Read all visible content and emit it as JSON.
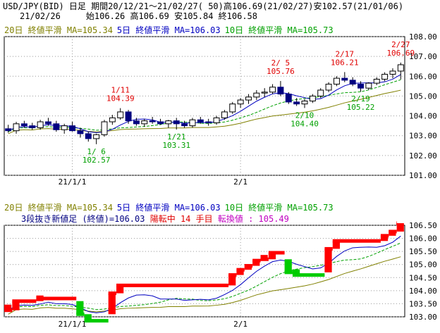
{
  "header": {
    "line1": "USD/JPY(BID) 日足 期間20/12/21～21/02/27( 50)高106.69(21/02/27)安102.57(21/01/06)",
    "date": "21/02/26",
    "ohlc": "始106.26 高106.69 安105.84 終106.58"
  },
  "ma_legend_top": {
    "ma20": "20日 終値平滑 MA=105.34",
    "ma5": "5日 終値平滑 MA=106.03",
    "ma10": "10日 終値平滑 MA=105.73"
  },
  "ma_legend_bottom": {
    "ma20": "20日 終値平滑 MA=105.34",
    "ma5": "5日 終値平滑 MA=106.03",
    "ma10": "10日 終値平滑 MA=105.73"
  },
  "kagi_info": {
    "label": "3段抜き新値足 (終値)=106.03",
    "state": "陽転中 14 手目",
    "reversal": "転換値 : 105.49"
  },
  "colors": {
    "up": "#ff0000",
    "down": "#00cc00",
    "ma5": "#0000c0",
    "ma10": "#00a000",
    "ma20": "#808000",
    "candle_down": "#000080",
    "annotation_high": "#e00000",
    "annotation_low": "#00a000"
  },
  "chart_data": [
    {
      "type": "candlestick",
      "ylim": [
        101.0,
        108.0
      ],
      "yticks": [
        "108.00",
        "107.00",
        "106.00",
        "105.00",
        "104.00",
        "103.00",
        "102.00",
        "101.00"
      ],
      "ytick_values": [
        108,
        107,
        106,
        105,
        104,
        103,
        102,
        101
      ],
      "xticks": [
        {
          "label": "21/1/1",
          "index": 8
        },
        {
          "label": "2/1",
          "index": 29
        }
      ],
      "annotations": [
        {
          "date": "1/ 6",
          "value": "102.57",
          "index": 11,
          "kind": "low"
        },
        {
          "date": "1/11",
          "value": "104.39",
          "index": 14,
          "kind": "high"
        },
        {
          "date": "1/21",
          "value": "103.31",
          "index": 21,
          "kind": "low"
        },
        {
          "date": "2/ 5",
          "value": "105.76",
          "index": 34,
          "kind": "high"
        },
        {
          "date": "2/10",
          "value": "104.40",
          "index": 37,
          "kind": "low"
        },
        {
          "date": "2/17",
          "value": "106.21",
          "index": 42,
          "kind": "high"
        },
        {
          "date": "2/19",
          "value": "105.22",
          "index": 44,
          "kind": "low"
        },
        {
          "date": "2/27",
          "value": "106.69",
          "index": 49,
          "kind": "high"
        }
      ],
      "candles": [
        [
          103.35,
          103.55,
          103.15,
          103.25
        ],
        [
          103.25,
          103.7,
          103.1,
          103.6
        ],
        [
          103.6,
          103.75,
          103.4,
          103.5
        ],
        [
          103.5,
          103.65,
          103.3,
          103.4
        ],
        [
          103.4,
          103.8,
          103.3,
          103.7
        ],
        [
          103.7,
          103.9,
          103.5,
          103.6
        ],
        [
          103.6,
          103.75,
          103.2,
          103.3
        ],
        [
          103.3,
          103.6,
          103.1,
          103.5
        ],
        [
          103.5,
          103.7,
          103.2,
          103.25
        ],
        [
          103.25,
          103.4,
          102.9,
          103.1
        ],
        [
          103.1,
          103.2,
          102.7,
          102.85
        ],
        [
          102.85,
          103.1,
          102.57,
          103.05
        ],
        [
          103.05,
          103.8,
          102.95,
          103.7
        ],
        [
          103.7,
          104.05,
          103.55,
          103.9
        ],
        [
          103.9,
          104.39,
          103.8,
          104.2
        ],
        [
          104.2,
          104.3,
          103.6,
          103.75
        ],
        [
          103.75,
          103.9,
          103.5,
          103.6
        ],
        [
          103.6,
          103.85,
          103.45,
          103.75
        ],
        [
          103.75,
          103.95,
          103.6,
          103.7
        ],
        [
          103.7,
          103.85,
          103.55,
          103.6
        ],
        [
          103.6,
          103.8,
          103.4,
          103.75
        ],
        [
          103.75,
          103.9,
          103.31,
          103.6
        ],
        [
          103.6,
          103.75,
          103.4,
          103.5
        ],
        [
          103.5,
          103.9,
          103.4,
          103.8
        ],
        [
          103.8,
          103.95,
          103.6,
          103.7
        ],
        [
          103.7,
          103.85,
          103.5,
          103.65
        ],
        [
          103.65,
          104.0,
          103.55,
          103.9
        ],
        [
          103.9,
          104.3,
          103.8,
          104.2
        ],
        [
          104.2,
          104.7,
          104.1,
          104.6
        ],
        [
          104.6,
          104.9,
          104.4,
          104.8
        ],
        [
          104.8,
          105.1,
          104.6,
          104.95
        ],
        [
          104.95,
          105.3,
          104.8,
          105.15
        ],
        [
          105.15,
          105.4,
          104.95,
          105.2
        ],
        [
          105.2,
          105.6,
          105.1,
          105.45
        ],
        [
          105.45,
          105.76,
          105.0,
          105.1
        ],
        [
          105.1,
          105.2,
          104.6,
          104.7
        ],
        [
          104.7,
          104.9,
          104.5,
          104.6
        ],
        [
          104.6,
          104.85,
          104.4,
          104.75
        ],
        [
          104.75,
          105.1,
          104.65,
          105.0
        ],
        [
          105.0,
          105.4,
          104.9,
          105.3
        ],
        [
          105.3,
          105.7,
          105.2,
          105.6
        ],
        [
          105.6,
          106.0,
          105.5,
          105.9
        ],
        [
          105.9,
          106.21,
          105.7,
          105.8
        ],
        [
          105.8,
          105.95,
          105.5,
          105.6
        ],
        [
          105.6,
          105.75,
          105.22,
          105.4
        ],
        [
          105.4,
          105.7,
          105.3,
          105.65
        ],
        [
          105.65,
          105.95,
          105.55,
          105.85
        ],
        [
          105.85,
          106.2,
          105.75,
          106.1
        ],
        [
          106.1,
          106.4,
          105.9,
          106.26
        ],
        [
          106.26,
          106.69,
          105.84,
          106.58
        ]
      ]
    },
    {
      "type": "kagi",
      "ylim": [
        103.0,
        106.5
      ],
      "yticks": [
        "106.50",
        "106.00",
        "105.50",
        "105.00",
        "104.50",
        "104.00",
        "103.50",
        "103.00"
      ],
      "ytick_values": [
        106.5,
        106.0,
        105.5,
        105.0,
        104.5,
        104.0,
        103.5,
        103.0
      ],
      "xticks": [
        {
          "label": "21/1/1",
          "index": 8
        },
        {
          "label": "2/1",
          "index": 29
        }
      ]
    }
  ]
}
